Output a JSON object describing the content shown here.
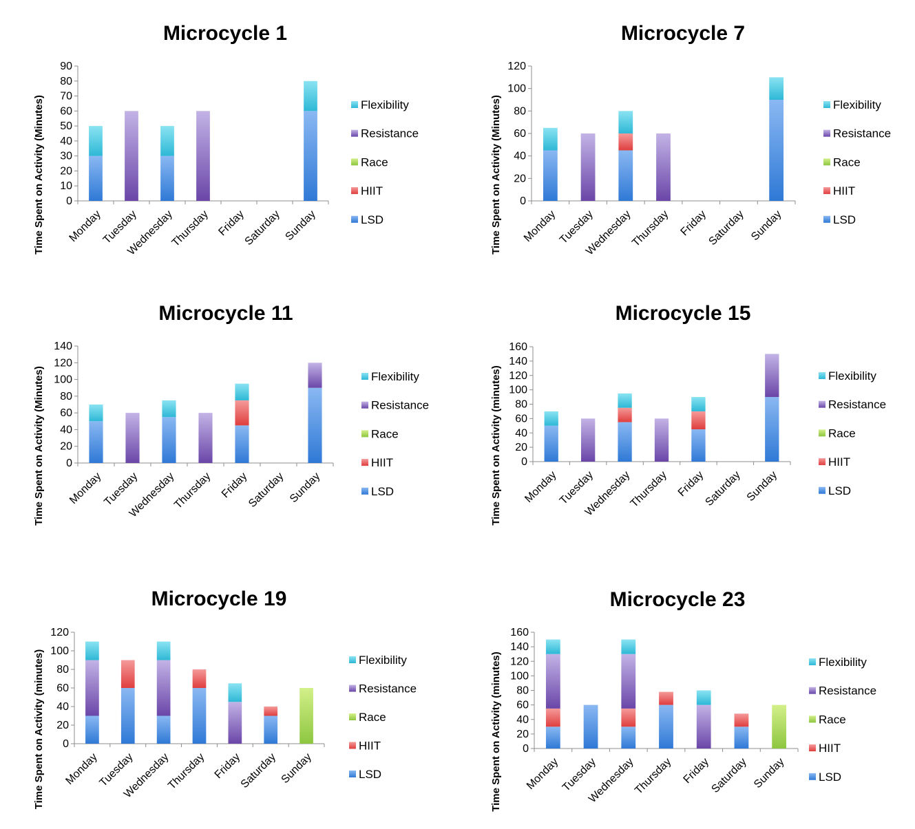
{
  "legend_order": [
    "Flexibility",
    "Resistance",
    "Race",
    "HIIT",
    "LSD"
  ],
  "colors": {
    "LSD": [
      "#2f79d6",
      "#8ab8f2"
    ],
    "HIIT": [
      "#e03e3e",
      "#f59a9a"
    ],
    "Race": [
      "#8dc63f",
      "#d3f08a"
    ],
    "Resistance": [
      "#6a46a8",
      "#c3b3e6"
    ],
    "Flexibility": [
      "#2eb8d6",
      "#8ae3f2"
    ]
  },
  "chart_data": [
    {
      "type": "bar",
      "stacked": true,
      "title": "Microcycle 1",
      "ylabel": "Time Spent on Activity (Minutes)",
      "ylim": [
        0,
        90
      ],
      "yticks": [
        0,
        10,
        20,
        30,
        40,
        50,
        60,
        70,
        80,
        90
      ],
      "categories": [
        "Monday",
        "Tuesday",
        "Wednesday",
        "Thursday",
        "Friday",
        "Saturday",
        "Sunday"
      ],
      "series": [
        {
          "name": "LSD",
          "values": [
            30,
            0,
            30,
            0,
            0,
            0,
            60
          ]
        },
        {
          "name": "HIIT",
          "values": [
            0,
            0,
            0,
            0,
            0,
            0,
            0
          ]
        },
        {
          "name": "Race",
          "values": [
            0,
            0,
            0,
            0,
            0,
            0,
            0
          ]
        },
        {
          "name": "Resistance",
          "values": [
            0,
            60,
            0,
            60,
            0,
            0,
            0
          ]
        },
        {
          "name": "Flexibility",
          "values": [
            20,
            0,
            20,
            0,
            0,
            0,
            20
          ]
        }
      ],
      "legend": "right"
    },
    {
      "type": "bar",
      "stacked": true,
      "title": "Microcycle 7",
      "ylabel": "Time Spent on Activity (Minutes)",
      "ylim": [
        0,
        120
      ],
      "yticks": [
        0,
        20,
        40,
        60,
        80,
        100,
        120
      ],
      "categories": [
        "Monday",
        "Tuesday",
        "Wednesday",
        "Thursday",
        "Friday",
        "Saturday",
        "Sunday"
      ],
      "series": [
        {
          "name": "LSD",
          "values": [
            45,
            0,
            45,
            0,
            0,
            0,
            90
          ]
        },
        {
          "name": "HIIT",
          "values": [
            0,
            0,
            15,
            0,
            0,
            0,
            0
          ]
        },
        {
          "name": "Race",
          "values": [
            0,
            0,
            0,
            0,
            0,
            0,
            0
          ]
        },
        {
          "name": "Resistance",
          "values": [
            0,
            60,
            0,
            60,
            0,
            0,
            0
          ]
        },
        {
          "name": "Flexibility",
          "values": [
            20,
            0,
            20,
            0,
            0,
            0,
            20
          ]
        }
      ],
      "legend": "right"
    },
    {
      "type": "bar",
      "stacked": true,
      "title": "Microcycle 11",
      "ylabel": "Time Spent on Activity (Minutes)",
      "ylim": [
        0,
        140
      ],
      "yticks": [
        0,
        20,
        40,
        60,
        80,
        100,
        120,
        140
      ],
      "categories": [
        "Monday",
        "Tuesday",
        "Wednesday",
        "Thursday",
        "Friday",
        "Saturday",
        "Sunday"
      ],
      "series": [
        {
          "name": "LSD",
          "values": [
            50,
            0,
            55,
            0,
            45,
            0,
            90
          ]
        },
        {
          "name": "HIIT",
          "values": [
            0,
            0,
            0,
            0,
            30,
            0,
            0
          ]
        },
        {
          "name": "Race",
          "values": [
            0,
            0,
            0,
            0,
            0,
            0,
            0
          ]
        },
        {
          "name": "Resistance",
          "values": [
            0,
            60,
            0,
            60,
            0,
            0,
            30
          ]
        },
        {
          "name": "Flexibility",
          "values": [
            20,
            0,
            20,
            0,
            20,
            0,
            0
          ]
        }
      ],
      "legend": "right"
    },
    {
      "type": "bar",
      "stacked": true,
      "title": "Microcycle 15",
      "ylabel": "Time Spent on Activity (minutes)",
      "ylim": [
        0,
        160
      ],
      "yticks": [
        0,
        20,
        40,
        60,
        80,
        100,
        120,
        140,
        160
      ],
      "categories": [
        "Monday",
        "Tuesday",
        "Wednesday",
        "Thursday",
        "Friday",
        "Saturday",
        "Sunday"
      ],
      "series": [
        {
          "name": "LSD",
          "values": [
            50,
            0,
            55,
            0,
            45,
            0,
            90
          ]
        },
        {
          "name": "HIIT",
          "values": [
            0,
            0,
            20,
            0,
            25,
            0,
            0
          ]
        },
        {
          "name": "Race",
          "values": [
            0,
            0,
            0,
            0,
            0,
            0,
            0
          ]
        },
        {
          "name": "Resistance",
          "values": [
            0,
            60,
            0,
            60,
            0,
            0,
            60
          ]
        },
        {
          "name": "Flexibility",
          "values": [
            20,
            0,
            20,
            0,
            20,
            0,
            0
          ]
        }
      ],
      "legend": "right"
    },
    {
      "type": "bar",
      "stacked": true,
      "title": "Microcycle 19",
      "ylabel": "Time Spent on Activity (minutes)",
      "ylim": [
        0,
        120
      ],
      "yticks": [
        0,
        20,
        40,
        60,
        80,
        100,
        120
      ],
      "categories": [
        "Monday",
        "Tuesday",
        "Wednesday",
        "Thursday",
        "Friday",
        "Saturday",
        "Sunday"
      ],
      "series": [
        {
          "name": "LSD",
          "values": [
            30,
            60,
            30,
            60,
            0,
            30,
            0
          ]
        },
        {
          "name": "HIIT",
          "values": [
            0,
            30,
            0,
            20,
            0,
            10,
            0
          ]
        },
        {
          "name": "Race",
          "values": [
            0,
            0,
            0,
            0,
            0,
            0,
            60
          ]
        },
        {
          "name": "Resistance",
          "values": [
            60,
            0,
            60,
            0,
            45,
            0,
            0
          ]
        },
        {
          "name": "Flexibility",
          "values": [
            20,
            0,
            20,
            0,
            20,
            0,
            0
          ]
        }
      ],
      "legend": "right"
    },
    {
      "type": "bar",
      "stacked": true,
      "title": "Microcycle 23",
      "ylabel": "Time Spent on Activity (minutes)",
      "ylim": [
        0,
        160
      ],
      "yticks": [
        0,
        20,
        40,
        60,
        80,
        100,
        120,
        140,
        160
      ],
      "categories": [
        "Monday",
        "Tuesday",
        "Wednesday",
        "Thursday",
        "Friday",
        "Saturday",
        "Sunday"
      ],
      "series": [
        {
          "name": "LSD",
          "values": [
            30,
            60,
            30,
            60,
            0,
            30,
            0
          ]
        },
        {
          "name": "HIIT",
          "values": [
            25,
            0,
            25,
            18,
            0,
            18,
            0
          ]
        },
        {
          "name": "Race",
          "values": [
            0,
            0,
            0,
            0,
            0,
            0,
            60
          ]
        },
        {
          "name": "Resistance",
          "values": [
            75,
            0,
            75,
            0,
            60,
            0,
            0
          ]
        },
        {
          "name": "Flexibility",
          "values": [
            20,
            0,
            20,
            0,
            20,
            0,
            0
          ]
        }
      ],
      "legend": "right"
    }
  ]
}
